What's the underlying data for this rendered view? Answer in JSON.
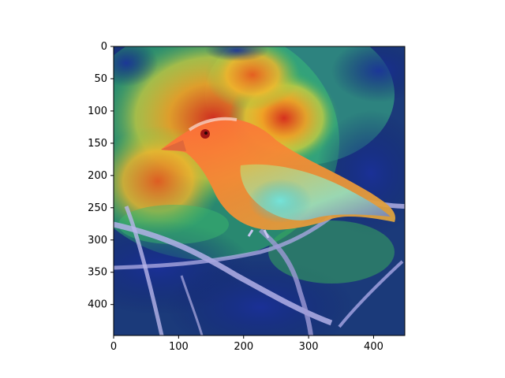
{
  "figure": {
    "description_hidden": false,
    "axes": {
      "x_range": [
        0,
        448
      ],
      "y_range": [
        448,
        0
      ],
      "x_ticks": [
        "0",
        "100",
        "200",
        "300",
        "400"
      ],
      "y_ticks": [
        "0",
        "50",
        "100",
        "150",
        "200",
        "250",
        "300",
        "350",
        "400"
      ]
    },
    "image": {
      "subject": "bird-on-branch-with-heatmap-overlay",
      "colormap": "jet"
    }
  }
}
